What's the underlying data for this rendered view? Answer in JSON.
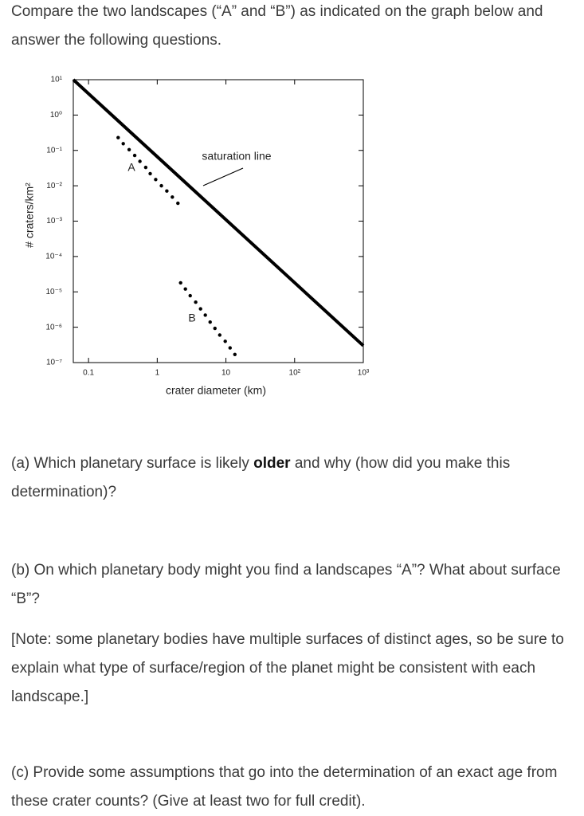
{
  "intro": "Compare the two landscapes (“A” and “B”) as indicated on the graph below and answer the following questions.",
  "chart_data": {
    "type": "scatter",
    "x_label": "crater diameter (km)",
    "y_label": "# craters/km²",
    "annotations": [
      "A",
      "B",
      "saturation line"
    ],
    "log_x": true,
    "log_y": true,
    "grid": false,
    "xlim": [
      0.06,
      1000
    ],
    "xticks": [
      0.1,
      1,
      10,
      {
        "value": 100,
        "label": "10²"
      },
      {
        "value": 1000,
        "label": "10³"
      }
    ],
    "ylim": [
      1e-07,
      10
    ],
    "yticks": [
      {
        "value": 1e-07,
        "label": "10⁻⁷"
      },
      {
        "value": 1e-06,
        "label": "10⁻⁶"
      },
      {
        "value": 1e-05,
        "label": "10⁻⁵"
      },
      {
        "value": 0.0001,
        "label": "10⁻⁴"
      },
      {
        "value": 0.001,
        "label": "10⁻³"
      },
      {
        "value": 0.01,
        "label": "10⁻²"
      },
      {
        "value": 0.1,
        "label": "10⁻¹"
      },
      {
        "value": 1,
        "label": "10⁰"
      },
      {
        "value": 10,
        "label": "10¹"
      }
    ],
    "series": [
      {
        "style": "line",
        "color": "#000000",
        "x": [
          0.06,
          1000
        ],
        "values": [
          10,
          3e-07
        ]
      },
      {
        "style": "dots",
        "color": "#000000",
        "x": [
          0.27,
          0.32,
          0.39,
          0.47,
          0.56,
          0.68,
          0.79,
          0.95,
          1.15,
          1.38,
          1.66,
          2.0
        ],
        "values": [
          0.23,
          0.155,
          0.105,
          0.072,
          0.049,
          0.033,
          0.022,
          0.015,
          0.01,
          0.0071,
          0.0048,
          0.0032
        ]
      },
      {
        "style": "dots",
        "color": "#000000",
        "x": [
          2.19,
          2.57,
          3.02,
          3.63,
          4.27,
          5.01,
          5.89,
          6.92,
          8.13,
          9.77,
          11.5,
          13.5
        ],
        "values": [
          1.8e-05,
          1.2e-05,
          7.8e-06,
          5.1e-06,
          3.3e-06,
          2.2e-06,
          1.4e-06,
          9.3e-07,
          6e-07,
          4e-07,
          2.6e-07,
          1.7e-07
        ]
      }
    ]
  },
  "questions": {
    "a": [
      "(a) Which planetary surface is likely ",
      "older",
      " and why (how did you make this determination)?"
    ],
    "b": "(b) On which planetary body might you find a landscapes “A”? What about surface “B”?",
    "note": "[Note: some planetary bodies have multiple surfaces of distinct ages, so be sure to explain what type of surface/region of the planet might be consistent with each landscape.]",
    "c": "(c) Provide some assumptions that go into the determination of an exact age from these crater counts? (Give at least two for full credit)."
  }
}
